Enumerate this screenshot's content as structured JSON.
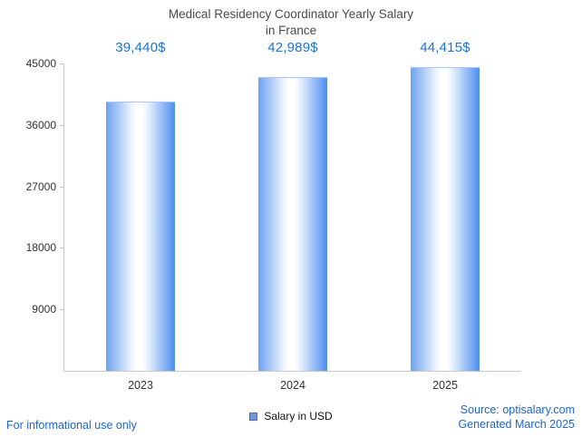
{
  "chart_data": {
    "type": "bar",
    "title_lines": [
      "Medical Residency Coordinator Yearly Salary",
      "in France"
    ],
    "categories": [
      "2023",
      "2024",
      "2025"
    ],
    "series": [
      {
        "name": "Salary in USD",
        "values": [
          39440,
          42989,
          44415
        ]
      }
    ],
    "value_labels": [
      "39,440$",
      "42,989$",
      "44,415$"
    ],
    "xlabel": "",
    "ylabel": "",
    "ylim": [
      0,
      45000
    ],
    "yticks": [
      9000,
      18000,
      27000,
      36000,
      45000
    ],
    "grid": false,
    "legend_position": "bottom",
    "value_label_color": "#1a73e8"
  },
  "legend": {
    "label": "Salary in USD",
    "swatch_color": "#7096d8"
  },
  "footer": {
    "disclaimer": "For informational use only",
    "source": "Source: optisalary.com",
    "generated": "Generated March 2025"
  },
  "colors": {
    "link_blue": "#1a66d0",
    "title_gray": "#4a4a4a",
    "axis_gray": "#c9c9c9"
  }
}
